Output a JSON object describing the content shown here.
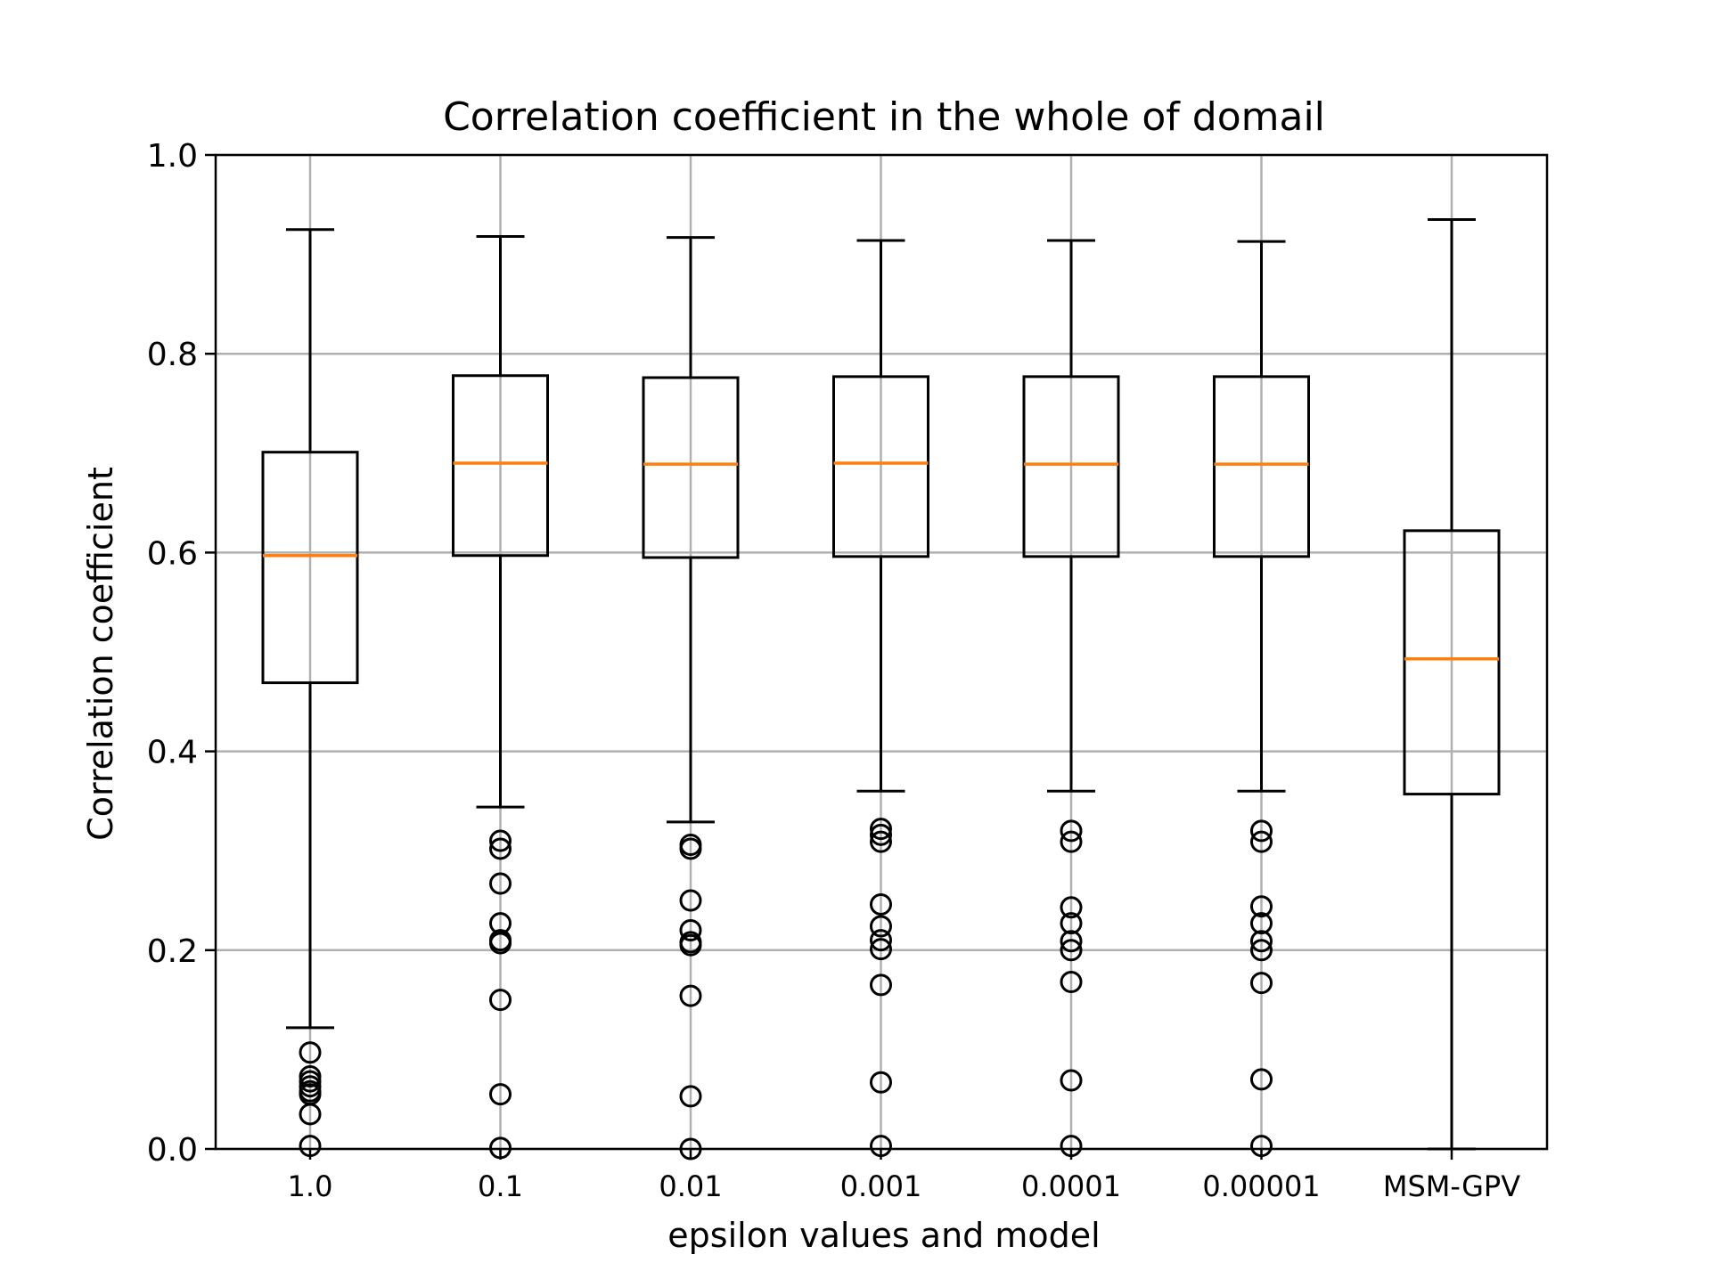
{
  "chart_data": {
    "type": "box",
    "title": "Correlation coefficient in the whole of domail",
    "xlabel": "epsilon values and model",
    "ylabel": "Correlation coefficient",
    "ylim": [
      0.0,
      1.0
    ],
    "yticks": [
      "0.0",
      "0.2",
      "0.4",
      "0.6",
      "0.8",
      "1.0"
    ],
    "grid": true,
    "legend": "none",
    "categories": [
      "1.0",
      "0.1",
      "0.01",
      "0.001",
      "0.0001",
      "0.00001",
      "MSM-GPV"
    ],
    "boxes": [
      {
        "whisker_low": 0.122,
        "q1": 0.469,
        "median": 0.597,
        "q3": 0.701,
        "whisker_high": 0.925,
        "outliers": [
          0.097,
          0.073,
          0.068,
          0.063,
          0.058,
          0.055,
          0.035,
          0.003
        ]
      },
      {
        "whisker_low": 0.344,
        "q1": 0.597,
        "median": 0.69,
        "q3": 0.778,
        "whisker_high": 0.918,
        "outliers": [
          0.31,
          0.302,
          0.267,
          0.227,
          0.21,
          0.207,
          0.15,
          0.055,
          0.001
        ]
      },
      {
        "whisker_low": 0.329,
        "q1": 0.595,
        "median": 0.689,
        "q3": 0.776,
        "whisker_high": 0.917,
        "outliers": [
          0.306,
          0.302,
          0.25,
          0.22,
          0.208,
          0.205,
          0.154,
          0.053,
          0.0
        ]
      },
      {
        "whisker_low": 0.36,
        "q1": 0.596,
        "median": 0.69,
        "q3": 0.777,
        "whisker_high": 0.914,
        "outliers": [
          0.322,
          0.316,
          0.309,
          0.246,
          0.224,
          0.21,
          0.201,
          0.165,
          0.067,
          0.003
        ]
      },
      {
        "whisker_low": 0.36,
        "q1": 0.596,
        "median": 0.689,
        "q3": 0.777,
        "whisker_high": 0.914,
        "outliers": [
          0.32,
          0.309,
          0.243,
          0.227,
          0.209,
          0.2,
          0.168,
          0.069,
          0.003
        ]
      },
      {
        "whisker_low": 0.36,
        "q1": 0.596,
        "median": 0.689,
        "q3": 0.777,
        "whisker_high": 0.913,
        "outliers": [
          0.32,
          0.309,
          0.244,
          0.227,
          0.209,
          0.2,
          0.167,
          0.07,
          0.003
        ]
      },
      {
        "whisker_low": 0.0,
        "q1": 0.357,
        "median": 0.493,
        "q3": 0.622,
        "whisker_high": 0.935,
        "outliers": []
      }
    ],
    "colors": {
      "box": "#000000",
      "median": "#ff7f0e",
      "grid": "#b0b0b0",
      "outlier": "#000000"
    }
  }
}
